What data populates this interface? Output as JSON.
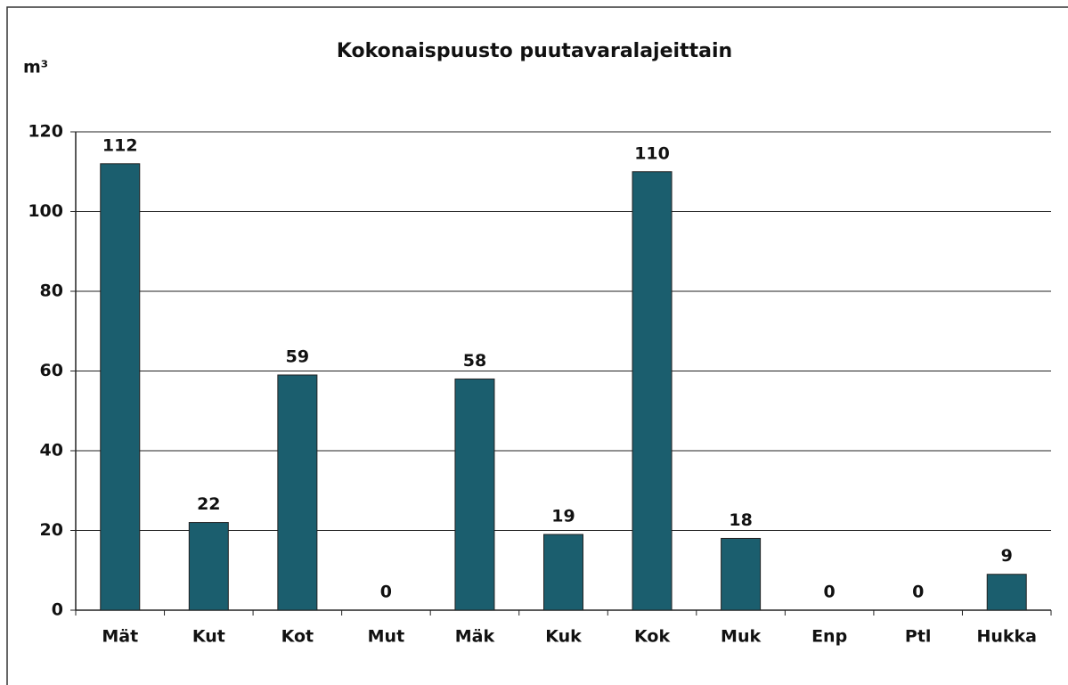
{
  "chart_data": {
    "type": "bar",
    "title": "Kokonaispuusto puutavaralajeittain",
    "y_label": "m³",
    "categories": [
      "Mät",
      "Kut",
      "Kot",
      "Mut",
      "Mäk",
      "Kuk",
      "Kok",
      "Muk",
      "Enp",
      "Ptl",
      "Hukka"
    ],
    "values": [
      112,
      22,
      59,
      0,
      58,
      19,
      110,
      18,
      0,
      0,
      9
    ],
    "color": "#1b5e6e",
    "ylim": [
      0,
      120
    ],
    "yticks": [
      0,
      20,
      40,
      60,
      80,
      100,
      120
    ],
    "grid": true
  }
}
